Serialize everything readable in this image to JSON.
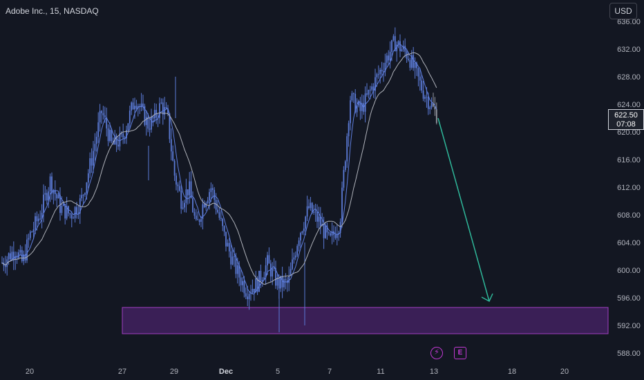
{
  "header": {
    "title": "Adobe Inc., 15, NASDAQ"
  },
  "toolbar": {
    "currency_label": "USD"
  },
  "last_price": {
    "value": "622.50",
    "countdown": "07:08"
  },
  "events": [
    {
      "name": "dividend-split-event",
      "icon": "lightning-icon",
      "glyph": "⚡"
    },
    {
      "name": "earnings-event",
      "icon": "earnings-icon",
      "glyph": "E"
    }
  ],
  "colors": {
    "background": "#131722",
    "candle": "#5b7bd6",
    "candle_recent": "#9598a1",
    "ma": "#b0b3bb",
    "zone_fill": "#3a1f56",
    "zone_border": "#a13fc1",
    "arrow": "#2fb89a",
    "axis_text": "#b2b5be"
  },
  "chart_data": {
    "type": "candlestick",
    "title": "Adobe Inc., 15, NASDAQ",
    "ylim": [
      586,
      637
    ],
    "y_ticks": [
      "588.00",
      "592.00",
      "596.00",
      "600.00",
      "604.00",
      "608.00",
      "612.00",
      "616.00",
      "620.00",
      "624.00",
      "628.00",
      "632.00",
      "636.00"
    ],
    "x_ticks": [
      "20",
      "27",
      "29",
      "Dec",
      "5",
      "7",
      "11",
      "13",
      "18",
      "20"
    ],
    "price_path": [
      {
        "x": "20",
        "y": 602
      },
      {
        "x": "20",
        "y": 603
      },
      {
        "x": "20",
        "y": 601
      },
      {
        "x": "20",
        "y": 605
      },
      {
        "x": "27",
        "y": 608
      },
      {
        "x": "27",
        "y": 613
      },
      {
        "x": "27",
        "y": 609
      },
      {
        "x": "27",
        "y": 608
      },
      {
        "x": "27",
        "y": 610
      },
      {
        "x": "27",
        "y": 616
      },
      {
        "x": "27",
        "y": 623
      },
      {
        "x": "27",
        "y": 618
      },
      {
        "x": "27",
        "y": 619
      },
      {
        "x": "29",
        "y": 622
      },
      {
        "x": "29",
        "y": 625
      },
      {
        "x": "29",
        "y": 623
      },
      {
        "x": "29",
        "y": 621
      },
      {
        "x": "29",
        "y": 622
      },
      {
        "x": "29",
        "y": 624
      },
      {
        "x": "29",
        "y": 622
      },
      {
        "x": "29",
        "y": 614
      },
      {
        "x": "Dec",
        "y": 610
      },
      {
        "x": "Dec",
        "y": 612
      },
      {
        "x": "Dec",
        "y": 606
      },
      {
        "x": "Dec",
        "y": 610
      },
      {
        "x": "Dec",
        "y": 612
      },
      {
        "x": "Dec",
        "y": 608
      },
      {
        "x": "Dec",
        "y": 604
      },
      {
        "x": "5",
        "y": 600
      },
      {
        "x": "5",
        "y": 597
      },
      {
        "x": "5",
        "y": 598
      },
      {
        "x": "5",
        "y": 601
      },
      {
        "x": "5",
        "y": 598
      },
      {
        "x": "7",
        "y": 598
      },
      {
        "x": "7",
        "y": 605
      },
      {
        "x": "7",
        "y": 609
      },
      {
        "x": "7",
        "y": 607
      },
      {
        "x": "7",
        "y": 604
      },
      {
        "x": "11",
        "y": 607
      },
      {
        "x": "11",
        "y": 625
      },
      {
        "x": "11",
        "y": 623
      },
      {
        "x": "11",
        "y": 626
      },
      {
        "x": "11",
        "y": 629
      },
      {
        "x": "13",
        "y": 633
      },
      {
        "x": "13",
        "y": 631
      },
      {
        "x": "13",
        "y": 626
      },
      {
        "x": "13",
        "y": 622.5
      }
    ],
    "last_price": 622.5,
    "demand_zone": {
      "from_x": "27",
      "to_x": "right-edge",
      "y_low": 590.8,
      "y_high": 594.6
    },
    "forecast_arrow": {
      "from": {
        "x": "13",
        "y": 622
      },
      "to": {
        "x": "18",
        "y": 595.5
      }
    },
    "moving_averages": 2,
    "grid": false
  }
}
